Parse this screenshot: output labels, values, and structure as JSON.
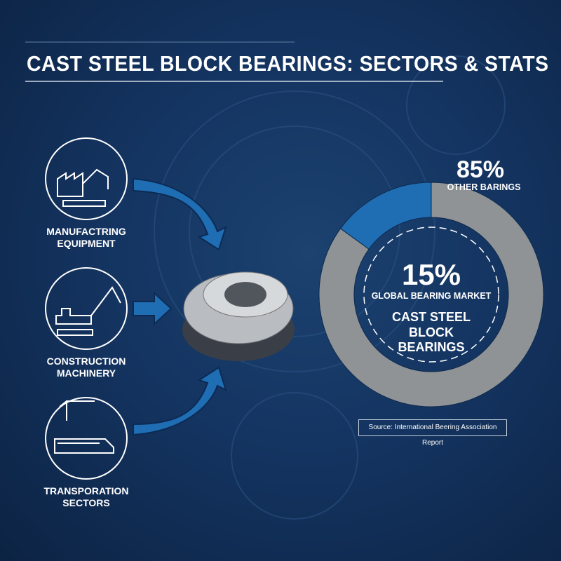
{
  "title": "CAST STEEL BLOCK BEARINGS: SECTORS & STATS",
  "sectors": [
    {
      "label": "MANUFACTRING EQUIPMENT"
    },
    {
      "label": "CONSTRUCTION MACHINERY"
    },
    {
      "label": "TRANSPORATION SECTORS"
    }
  ],
  "chart_data": {
    "type": "donut",
    "categories": [
      "CAST STEEL BLOCK BEARINGS",
      "OTHER BARINGS"
    ],
    "values": [
      15,
      85
    ],
    "value_labels": [
      "15%",
      "85%"
    ],
    "colors": [
      "#1f6db3",
      "#8f9396"
    ],
    "subtitle": "GLOBAL BEARING MARKET",
    "source": "Source: International Beering Association Report"
  }
}
